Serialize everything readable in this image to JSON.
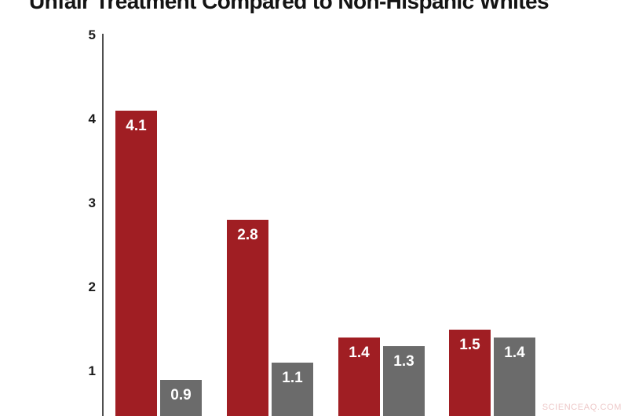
{
  "title": "Unfair Treatment Compared to Non-Hispanic Whites",
  "watermark": "SCIENCEAQ.COM",
  "colors": {
    "red_series": "#A01E23",
    "gray_series": "#6B6B6B",
    "axis": "#4f4f4f",
    "tick_text": "#1a1a1a",
    "bar_label_text": "#ffffff",
    "watermark_text": "#eec9c9"
  },
  "chart_data": {
    "type": "bar",
    "title": "Unfair Treatment Compared to Non-Hispanic Whites",
    "subtitle": "",
    "xlabel": "",
    "ylabel": "",
    "ylim": [
      0,
      5
    ],
    "yticks": [
      1,
      2,
      3,
      4,
      5
    ],
    "grid": false,
    "legend": false,
    "note": "Category axis labels are cropped out of the visible image; grouped pairs of red/gray bars with value labels inside bar tops.",
    "categories": [
      "",
      "",
      "",
      ""
    ],
    "series": [
      {
        "name": "red",
        "color": "#A01E23",
        "values": [
          4.1,
          2.8,
          1.4,
          1.5
        ]
      },
      {
        "name": "gray",
        "color": "#6B6B6B",
        "values": [
          0.9,
          1.1,
          1.3,
          1.4
        ]
      }
    ]
  }
}
